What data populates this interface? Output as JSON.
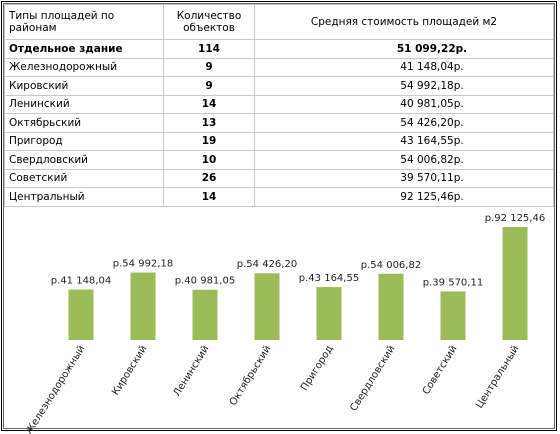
{
  "table": {
    "header": [
      "Типы площадей по районам",
      "Количество объектов",
      "Средняя стоимость площадей м2"
    ],
    "rows": [
      [
        "Отдельное здание",
        "114",
        "51 099,22р."
      ],
      [
        "Железнодорожный",
        "9",
        "41 148,04р."
      ],
      [
        "Кировский",
        "9",
        "54 992,18р."
      ],
      [
        "Ленинский",
        "14",
        "40 981,05р."
      ],
      [
        "Октябрьский",
        "13",
        "54 426,20р."
      ],
      [
        "Пригород",
        "19",
        "43 164,55р."
      ],
      [
        "Свердловский",
        "10",
        "54 006,82р."
      ],
      [
        "Советский",
        "26",
        "39 570,11р."
      ],
      [
        "Центральный",
        "14",
        "92 125,46р."
      ]
    ]
  },
  "chart_data": {
    "type": "bar",
    "categories": [
      "Железнодорожный",
      "Кировский",
      "Ленинский",
      "Октябрьский",
      "Пригород",
      "Свердловский",
      "Советский",
      "Центральный"
    ],
    "values": [
      41148.04,
      54992.18,
      40981.05,
      54426.2,
      43164.55,
      54006.82,
      39570.11,
      92125.46
    ],
    "value_labels": [
      "р.41 148,04",
      "р.54 992,18",
      "р.40 981,05",
      "р.54 426,20",
      "р.43 164,55",
      "р.54 006,82",
      "р.39 570,11",
      "р.92 125,46"
    ],
    "color": "#9bbb59"
  }
}
